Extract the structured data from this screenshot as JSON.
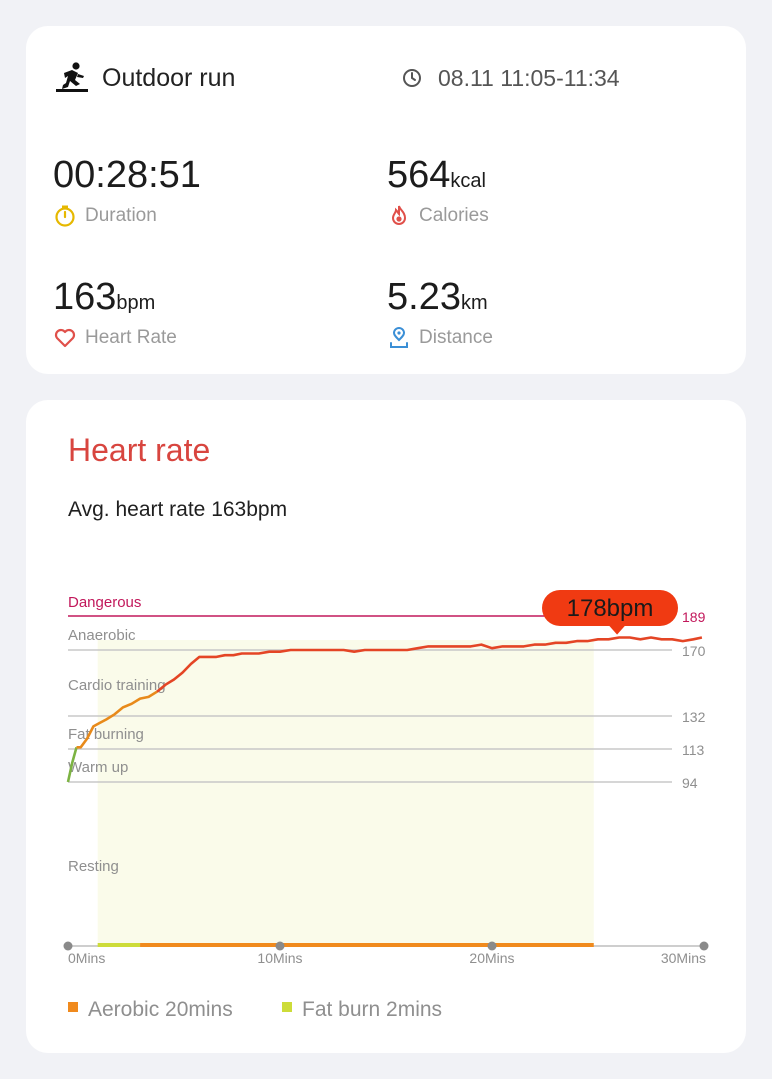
{
  "workout": {
    "type": "Outdoor run",
    "time_range": "08.11 11:05-11:34"
  },
  "metrics": {
    "duration": {
      "value": "00:28:51",
      "unit": "",
      "label": "Duration"
    },
    "calories": {
      "value": "564",
      "unit": "kcal",
      "label": "Calories"
    },
    "heart_rate": {
      "value": "163",
      "unit": "bpm",
      "label": "Heart Rate"
    },
    "distance": {
      "value": "5.23",
      "unit": "km",
      "label": "Distance"
    }
  },
  "heart_rate_section": {
    "title": "Heart rate",
    "average": "Avg. heart rate 163bpm"
  },
  "colors": {
    "title_red": "#d8453f",
    "line_red": "#e44525",
    "line_orange": "#e88a1a",
    "line_green": "#7cb342",
    "dangerous": "#c2185b",
    "zone_fill": "#fafbea",
    "aerobic": "#f08a1d",
    "fat_burn": "#cddc39"
  },
  "chart_data": {
    "type": "line",
    "x_unit": "Mins",
    "y_unit": "bpm",
    "ylim": [
      0,
      189
    ],
    "xlim": [
      0,
      30
    ],
    "x_ticks": [
      "0Mins",
      "10Mins",
      "20Mins",
      "30Mins"
    ],
    "zones": [
      {
        "name": "Dangerous",
        "threshold": 189
      },
      {
        "name": "Anaerobic",
        "threshold": 170
      },
      {
        "name": "Cardio training",
        "threshold": 132
      },
      {
        "name": "Fat burning",
        "threshold": 113
      },
      {
        "name": "Warm up",
        "threshold": 94
      },
      {
        "name": "Resting",
        "threshold": 0
      }
    ],
    "threshold_labels": [
      "189",
      "170",
      "132",
      "113",
      "94"
    ],
    "peak": {
      "x": 25.9,
      "value": 178,
      "label": "178bpm"
    },
    "series": [
      {
        "x": [
          0,
          0.2,
          0.4,
          0.6,
          0.9,
          1.2,
          1.5,
          1.8,
          2.2,
          2.6,
          3.0,
          3.4,
          3.8,
          4.2,
          4.6,
          5.0,
          5.4,
          5.8,
          6.2,
          6.6,
          7.0,
          7.4,
          7.8,
          8.2,
          8.6,
          9.0,
          9.5,
          10.0,
          10.5,
          11.0,
          11.5,
          12.0,
          12.5,
          13.0,
          13.5,
          14.0,
          14.5,
          15.0,
          15.5,
          16.0,
          16.5,
          17.0,
          17.5,
          18.0,
          18.5,
          19.0,
          19.5,
          20.0,
          20.5,
          21.0,
          21.5,
          22.0,
          22.5,
          23.0,
          23.5,
          24.0,
          24.5,
          25.0,
          25.5,
          26.0,
          26.5,
          27.0,
          27.5,
          28.0,
          28.5,
          29.0,
          29.5,
          29.9
        ],
        "values": [
          94,
          105,
          114,
          114,
          119,
          126,
          128,
          130,
          133,
          137,
          139,
          142,
          143,
          146,
          150,
          153,
          157,
          162,
          166,
          166,
          166,
          167,
          167,
          168,
          168,
          168,
          169,
          169,
          170,
          170,
          170,
          170,
          170,
          170,
          169,
          170,
          170,
          170,
          170,
          170,
          171,
          172,
          172,
          172,
          172,
          172,
          173,
          171,
          172,
          172,
          172,
          173,
          173,
          174,
          174,
          175,
          175,
          176,
          176,
          177,
          177,
          176,
          177,
          176,
          176,
          175,
          176,
          177
        ]
      }
    ],
    "bar": [
      {
        "name": "Fat burn",
        "start": 1.4,
        "end": 3.4
      },
      {
        "name": "Aerobic",
        "start": 3.4,
        "end": 24.8
      }
    ],
    "shaded_region": [
      1.4,
      24.8
    ]
  },
  "legend": [
    {
      "label": "Aerobic 20mins",
      "color": "#f08a1d"
    },
    {
      "label": "Fat burn 2mins",
      "color": "#cddc39"
    }
  ],
  "icons": {
    "run": "runner-icon",
    "clock": "clock-icon",
    "duration": "stopwatch-icon",
    "calories": "flame-icon",
    "heart": "heart-icon",
    "distance": "location-pin-icon"
  }
}
